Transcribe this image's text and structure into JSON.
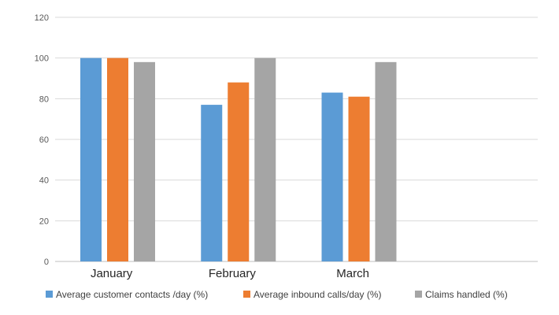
{
  "chart_data": {
    "type": "bar",
    "categories": [
      "January",
      "February",
      "March",
      ""
    ],
    "series": [
      {
        "name": "Average customer contacts /day (%)",
        "color": "#5b9bd5",
        "values": [
          100,
          77,
          83,
          null
        ]
      },
      {
        "name": "Average inbound calls/day (%)",
        "color": "#ed7d31",
        "values": [
          100,
          88,
          81,
          null
        ]
      },
      {
        "name": "Claims handled (%)",
        "color": "#a5a5a5",
        "values": [
          98,
          100,
          98,
          null
        ]
      }
    ],
    "yticks": [
      0,
      20,
      40,
      60,
      80,
      100,
      120
    ],
    "ylim": [
      0,
      120
    ],
    "grid": true,
    "legend_position": "bottom",
    "title": "",
    "xlabel": "",
    "ylabel": ""
  }
}
